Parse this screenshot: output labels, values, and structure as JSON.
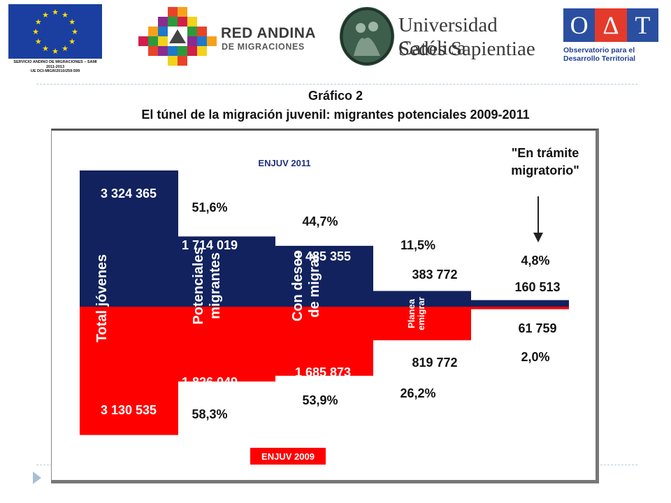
{
  "logos": {
    "eu": {
      "caption_line1": "SERVICIO ANDINO DE MIGRACIONES – SAMI",
      "caption_line2": "2011-2013",
      "caption_line3": "UE DCI-MIGR/2010/259-599"
    },
    "red_andina": {
      "title": "RED ANDINA",
      "subtitle": "DE MIGRACIONES"
    },
    "ucss": {
      "line1": "Universidad Católica",
      "line2": "Sedes Sapientiae"
    },
    "odt": {
      "letters": [
        "O",
        "Δ",
        "T"
      ],
      "line1": "Observatorio para el",
      "line2": "Desarrollo Territorial",
      "colors": {
        "blue": "#2a4fa0",
        "red": "#e43a2b"
      }
    }
  },
  "title": {
    "line1": "Gráfico 2",
    "line2": "El túnel de la migración juvenil: migrantes potenciales 2009-2011"
  },
  "chart_data": {
    "type": "bar",
    "categories": [
      "Total jóvenes",
      "Potenciales migrantes",
      "Con deseo de migrar",
      "Planea emigrar",
      "\"En trámite migratorio\""
    ],
    "category_label_lines": [
      [
        "Total jóvenes"
      ],
      [
        "Potenciales",
        "migrantes"
      ],
      [
        "Con deseo",
        "de migrar"
      ],
      [
        "Planea",
        "emigrar"
      ],
      []
    ],
    "series": [
      {
        "name": "ENJUV 2011",
        "color": "#11225e",
        "values": [
          3324365,
          1714019,
          1485355,
          383772,
          160513
        ],
        "value_labels": [
          "3 324 365",
          "1 714 019",
          "1 485 355",
          "383 772",
          "160 513"
        ],
        "percent_labels": [
          "",
          "51,6%",
          "44,7%",
          "11,5%",
          "4,8%"
        ]
      },
      {
        "name": "ENJUV 2009",
        "color": "#ff0000",
        "values": [
          3130535,
          1826049,
          1685873,
          819772,
          61759
        ],
        "value_labels": [
          "3 130 535",
          "1 826 049",
          "1 685 873",
          "819 772",
          "61 759"
        ],
        "percent_labels": [
          "",
          "58,3%",
          "53,9%",
          "26,2%",
          "2,0%"
        ]
      }
    ],
    "annotation": {
      "line1": "\"En trámite",
      "line2": "migratorio\""
    }
  }
}
